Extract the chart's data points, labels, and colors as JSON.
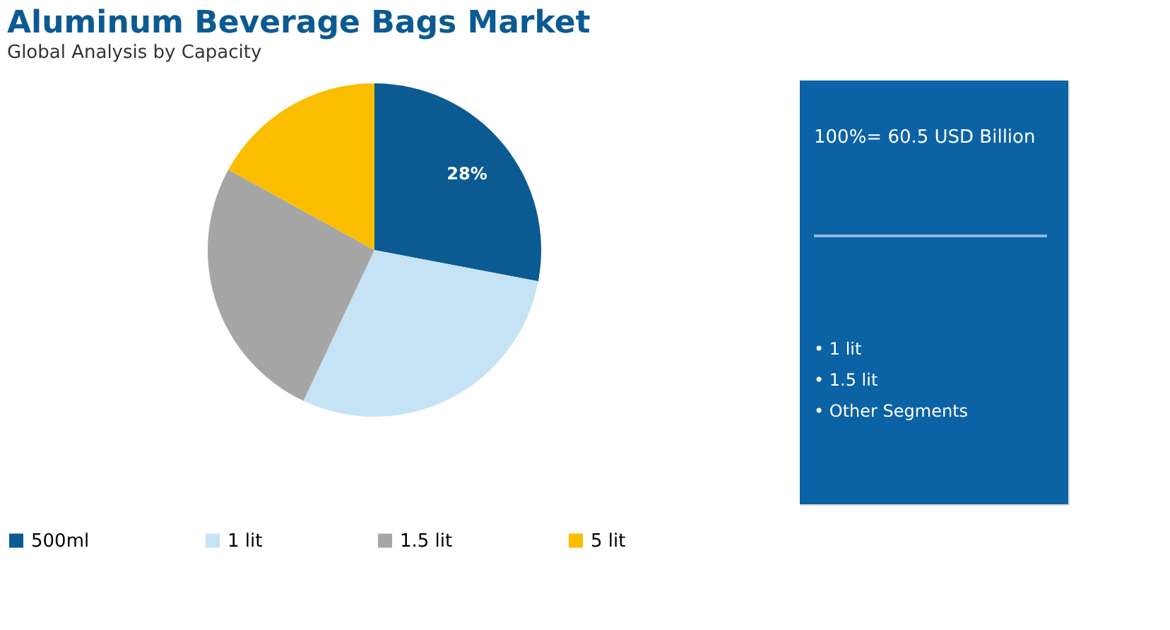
{
  "chart_data": {
    "type": "pie",
    "title": "Aluminum Beverage Bags Market",
    "subtitle": "Global Analysis by Capacity",
    "categories": [
      "500ml",
      "1 lit",
      "1.5 lit",
      "5 lit"
    ],
    "values": [
      28,
      29,
      26,
      17
    ],
    "colors": [
      "#0b5a92",
      "#c5e3f4",
      "#a6a6a6",
      "#fbbd00"
    ],
    "value_labels": [
      "28%",
      null,
      null,
      null
    ],
    "legend": "bottom",
    "annotations": [
      "100%= 60.5 USD Billion",
      "• 1 lit",
      "• 1.5 lit",
      "• Other Segments"
    ]
  }
}
